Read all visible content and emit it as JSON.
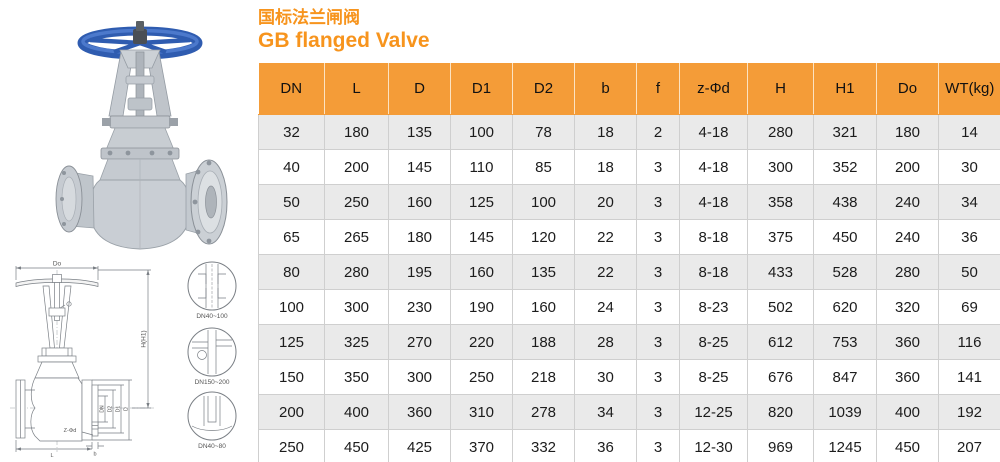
{
  "page": {
    "title_cn": "国标法兰闸阀",
    "title_en": "GB flanged Valve"
  },
  "colors": {
    "accent_orange": "#F7941D",
    "table_header_orange": "#F49C38",
    "row_alt_gray": "#EAEAEA",
    "cell_border": "#CFCFCF",
    "handwheel_blue": "#3A6CC5"
  },
  "table": {
    "headers": [
      "DN",
      "L",
      "D",
      "D1",
      "D2",
      "b",
      "f",
      "z-Φd",
      "H",
      "H1",
      "Do",
      "WT(kg)"
    ],
    "rows": [
      [
        "32",
        "180",
        "135",
        "100",
        "78",
        "18",
        "2",
        "4-18",
        "280",
        "321",
        "180",
        "14"
      ],
      [
        "40",
        "200",
        "145",
        "110",
        "85",
        "18",
        "3",
        "4-18",
        "300",
        "352",
        "200",
        "30"
      ],
      [
        "50",
        "250",
        "160",
        "125",
        "100",
        "20",
        "3",
        "4-18",
        "358",
        "438",
        "240",
        "34"
      ],
      [
        "65",
        "265",
        "180",
        "145",
        "120",
        "22",
        "3",
        "8-18",
        "375",
        "450",
        "240",
        "36"
      ],
      [
        "80",
        "280",
        "195",
        "160",
        "135",
        "22",
        "3",
        "8-18",
        "433",
        "528",
        "280",
        "50"
      ],
      [
        "100",
        "300",
        "230",
        "190",
        "160",
        "24",
        "3",
        "8-23",
        "502",
        "620",
        "320",
        "69"
      ],
      [
        "125",
        "325",
        "270",
        "220",
        "188",
        "28",
        "3",
        "8-25",
        "612",
        "753",
        "360",
        "116"
      ],
      [
        "150",
        "350",
        "300",
        "250",
        "218",
        "30",
        "3",
        "8-25",
        "676",
        "847",
        "360",
        "141"
      ],
      [
        "200",
        "400",
        "360",
        "310",
        "278",
        "34",
        "3",
        "12-25",
        "820",
        "1039",
        "400",
        "192"
      ],
      [
        "250",
        "450",
        "425",
        "370",
        "332",
        "36",
        "3",
        "12-30",
        "969",
        "1245",
        "450",
        "207"
      ]
    ]
  },
  "drawing": {
    "labels": {
      "do": "Do",
      "h": "H(H1)",
      "dn": "DN",
      "d2": "D2",
      "d1": "D1",
      "d": "D",
      "zphid": "Z-Φd",
      "l": "L",
      "b": "b"
    },
    "details": [
      "DN40~100",
      "DN150~200",
      "DN40~80"
    ]
  }
}
